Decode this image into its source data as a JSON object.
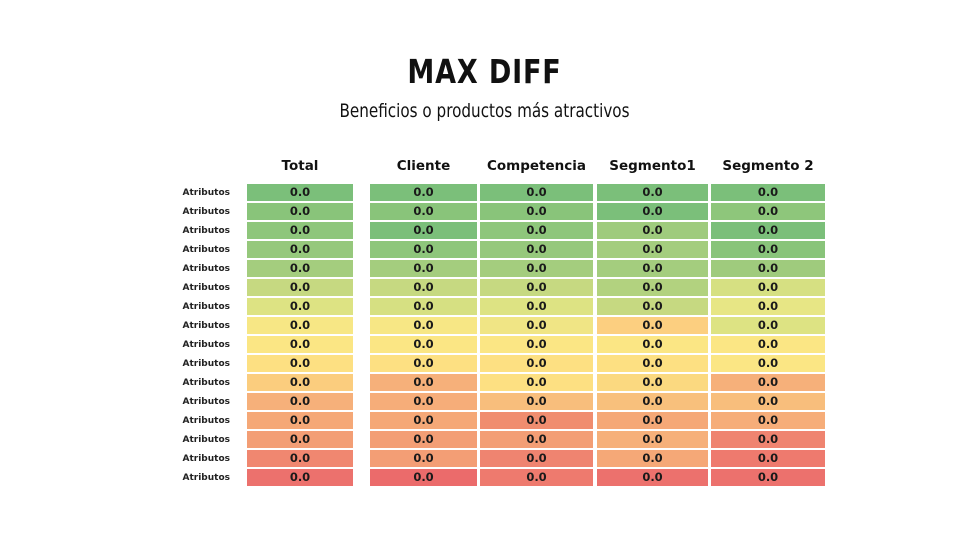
{
  "title": "MAX DIFF",
  "subtitle": "Beneficios o productos más atractivos",
  "columns": [
    "Total",
    "Cliente",
    "Competencia",
    "Segmento1",
    "Segmento 2"
  ],
  "row_label": "Atributos",
  "cell_value": "0.0",
  "colors": [
    [
      "#7bbf7a",
      "#7bbf7a",
      "#7bbf7a",
      "#7bbf7a",
      "#7bbf7a"
    ],
    [
      "#89c47a",
      "#89c47a",
      "#89c47a",
      "#7bbf7a",
      "#8ec67b"
    ],
    [
      "#8ec67b",
      "#7bbf7a",
      "#8ec67b",
      "#9fcb7d",
      "#7bbf7a"
    ],
    [
      "#96c87c",
      "#8ec67b",
      "#96c87c",
      "#a4cd7e",
      "#89c47a"
    ],
    [
      "#a4cd7e",
      "#a4cd7e",
      "#a4cd7e",
      "#a4cd7e",
      "#9fcb7d"
    ],
    [
      "#c6d981",
      "#c6d981",
      "#c6d981",
      "#b2d27f",
      "#d6e082"
    ],
    [
      "#dde383",
      "#d6e082",
      "#dde383",
      "#c6d981",
      "#e7e685"
    ],
    [
      "#f7e785",
      "#f7e785",
      "#f0e585",
      "#fccf80",
      "#dde383"
    ],
    [
      "#fbe684",
      "#fbe684",
      "#fbe684",
      "#fbe684",
      "#fbe684"
    ],
    [
      "#fde082",
      "#fde082",
      "#fde082",
      "#fde082",
      "#fbe684"
    ],
    [
      "#fbcd7e",
      "#f6b07a",
      "#fde082",
      "#fbd980",
      "#f6b07a"
    ],
    [
      "#f6b07a",
      "#f6ad79",
      "#f8be7c",
      "#f8c07c",
      "#f8be7c"
    ],
    [
      "#f5a877",
      "#f5a877",
      "#f08d6f",
      "#f5a877",
      "#f6ad79"
    ],
    [
      "#f39e75",
      "#f39e75",
      "#f39e75",
      "#f6b07a",
      "#ef8470"
    ],
    [
      "#f08770",
      "#f39e75",
      "#ef8470",
      "#f5a877",
      "#ee7a6e"
    ],
    [
      "#ec716d",
      "#eb6b6b",
      "#ee7a6e",
      "#ec716d",
      "#ec716d"
    ]
  ]
}
